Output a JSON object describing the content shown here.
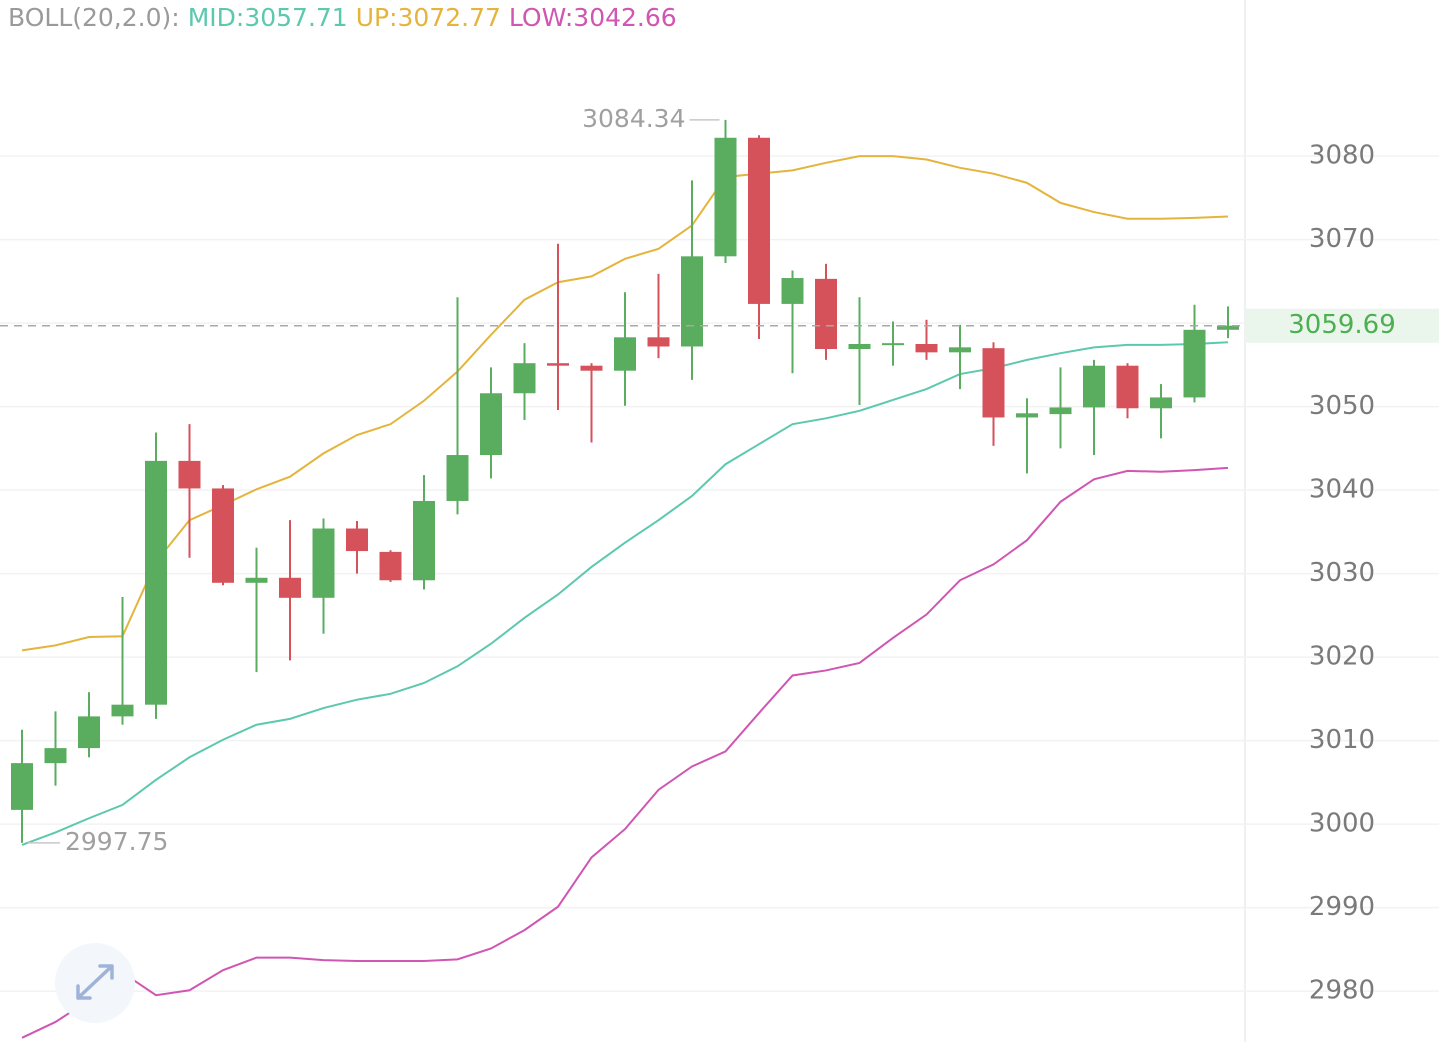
{
  "chart_data": {
    "type": "candlestick",
    "indicator_label": "BOLL(20,2.0):",
    "ylim": [
      2973.9,
      3098.7
    ],
    "yticks": [
      2980,
      2990,
      3000,
      3010,
      3020,
      3030,
      3040,
      3050,
      3060,
      3070,
      3080
    ],
    "ytick_labels_hidden": [
      3060
    ],
    "grid": true,
    "up_color": "#5aad5f",
    "down_color": "#d5525a",
    "open": [
      3001.7,
      3007.3,
      3009.1,
      3012.9,
      3014.3,
      3043.5,
      3040.2,
      3028.9,
      3029.5,
      3027.1,
      3035.4,
      3032.6,
      3029.2,
      3038.7,
      3044.2,
      3051.6,
      3055.2,
      3054.9,
      3054.3,
      3058.3,
      3057.2,
      3068.0,
      3082.2,
      3062.3,
      3065.3,
      3056.9,
      3057.4,
      3057.5,
      3056.5,
      3057.0,
      3048.7,
      3049.1,
      3049.9,
      3054.9,
      3049.8,
      3051.1,
      3059.2
    ],
    "high": [
      3011.3,
      3013.5,
      3015.8,
      3027.2,
      3046.9,
      3047.9,
      3040.6,
      3033.1,
      3036.4,
      3036.6,
      3036.3,
      3032.8,
      3041.8,
      3063.1,
      3054.7,
      3057.6,
      3069.5,
      3055.2,
      3063.7,
      3065.9,
      3077.1,
      3084.34,
      3082.5,
      3066.3,
      3067.1,
      3063.1,
      3060.2,
      3060.4,
      3059.8,
      3057.7,
      3051.0,
      3054.7,
      3055.6,
      3055.2,
      3052.7,
      3062.2,
      3062.0
    ],
    "low": [
      2997.75,
      3004.6,
      3008.0,
      3011.9,
      3012.6,
      3031.9,
      3028.6,
      3018.2,
      3019.6,
      3022.8,
      3030.0,
      3029.0,
      3028.1,
      3037.1,
      3041.4,
      3048.4,
      3049.6,
      3045.7,
      3050.1,
      3055.8,
      3053.2,
      3067.2,
      3058.1,
      3054.0,
      3055.6,
      3050.2,
      3054.9,
      3055.6,
      3052.1,
      3045.3,
      3042.0,
      3045.0,
      3044.2,
      3048.6,
      3046.2,
      3050.5,
      3058.2
    ],
    "close": [
      3007.3,
      3009.1,
      3012.9,
      3014.3,
      3043.5,
      3040.2,
      3028.9,
      3029.5,
      3027.1,
      3035.4,
      3032.7,
      3029.2,
      3038.7,
      3044.2,
      3051.6,
      3055.2,
      3054.9,
      3054.3,
      3058.3,
      3057.2,
      3068.0,
      3082.2,
      3062.3,
      3065.4,
      3056.9,
      3057.5,
      3057.6,
      3056.5,
      3057.1,
      3048.7,
      3049.2,
      3049.9,
      3054.9,
      3049.8,
      3051.1,
      3059.2,
      3059.69
    ],
    "series": [
      {
        "name": "MID:3057.71",
        "color": "#5cc8ae",
        "values": [
          2997.5,
          2999.0,
          3000.7,
          3002.3,
          3005.3,
          3008.0,
          3010.1,
          3011.9,
          3012.6,
          3013.9,
          3014.9,
          3015.6,
          3016.9,
          3018.9,
          3021.6,
          3024.7,
          3027.5,
          3030.8,
          3033.7,
          3036.4,
          3039.3,
          3043.1,
          3045.5,
          3047.9,
          3048.6,
          3049.5,
          3050.8,
          3052.1,
          3053.9,
          3054.6,
          3055.6,
          3056.4,
          3057.1,
          3057.4,
          3057.4,
          3057.5,
          3057.71
        ]
      },
      {
        "name": "UP:3072.77",
        "color": "#e4b43c",
        "values": [
          3020.8,
          3021.4,
          3022.4,
          3022.5,
          3031.4,
          3036.4,
          3038.2,
          3040.1,
          3041.6,
          3044.4,
          3046.6,
          3047.9,
          3050.7,
          3054.2,
          3058.6,
          3062.8,
          3064.9,
          3065.6,
          3067.7,
          3068.9,
          3071.7,
          3077.5,
          3077.9,
          3078.3,
          3079.2,
          3080.0,
          3080.0,
          3079.6,
          3078.6,
          3077.9,
          3076.8,
          3074.4,
          3073.3,
          3072.5,
          3072.5,
          3072.6,
          3072.77
        ]
      },
      {
        "name": "LOW:3042.66",
        "color": "#cf56b2",
        "values": [
          2974.4,
          2976.3,
          2978.9,
          2982.2,
          2979.5,
          2980.1,
          2982.5,
          2984.0,
          2984.0,
          2983.7,
          2983.6,
          2983.6,
          2983.6,
          2983.8,
          2985.1,
          2987.3,
          2990.1,
          2996.0,
          2999.4,
          3004.1,
          3006.9,
          3008.7,
          3013.3,
          3017.8,
          3018.4,
          3019.3,
          3022.3,
          3025.1,
          3029.2,
          3031.1,
          3034.0,
          3038.6,
          3041.3,
          3042.3,
          3042.2,
          3042.4,
          3042.66
        ]
      }
    ],
    "annotations": [
      {
        "value": 3084.34,
        "label": "3084.34",
        "at": "high"
      },
      {
        "value": 2997.75,
        "label": "2997.75",
        "at": "low"
      }
    ],
    "last_price": {
      "value": 3059.69,
      "label": "3059.69",
      "color": "#4caf50"
    }
  }
}
